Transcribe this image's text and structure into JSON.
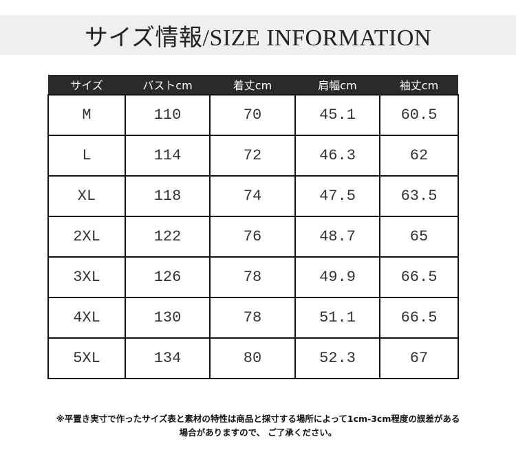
{
  "title": "サイズ情報/SIZE INFORMATION",
  "table": {
    "headers": [
      "サイズ",
      "バストcm",
      "着丈cm",
      "肩幅cm",
      "袖丈cm"
    ],
    "rows": [
      [
        "M",
        "110",
        "70",
        "45.1",
        "60.5"
      ],
      [
        "L",
        "114",
        "72",
        "46.3",
        "62"
      ],
      [
        "XL",
        "118",
        "74",
        "47.5",
        "63.5"
      ],
      [
        "2XL",
        "122",
        "76",
        "48.7",
        "65"
      ],
      [
        "3XL",
        "126",
        "78",
        "49.9",
        "66.5"
      ],
      [
        "4XL",
        "130",
        "78",
        "51.1",
        "66.5"
      ],
      [
        "5XL",
        "134",
        "80",
        "52.3",
        "67"
      ]
    ]
  },
  "note": {
    "line1": "※平置き実寸で作ったサイズ表と素材の特性は商品と採寸する場所によって1cm-3cm程度の誤差がある",
    "line2": "場合がありますので、 ご了承ください。"
  },
  "colors": {
    "header_bg": "#2a2a2a",
    "banner_bg": "#efefef"
  }
}
